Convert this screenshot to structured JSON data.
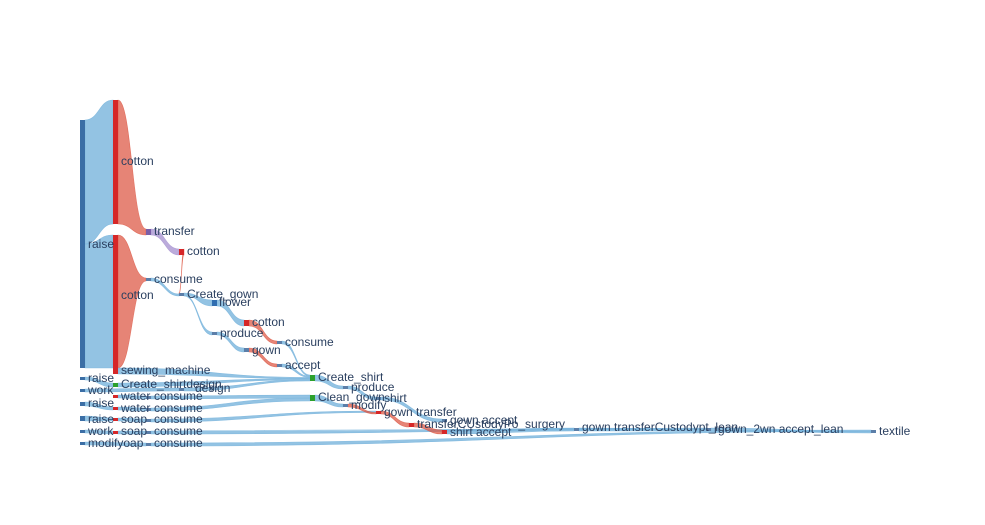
{
  "chart_data": {
    "type": "sankey",
    "nodes": [
      {
        "id": "raise_main",
        "label": "raise",
        "color": "#3b6ea5"
      },
      {
        "id": "cotton_1",
        "label": "cotton",
        "color": "#d62728"
      },
      {
        "id": "transfer_1",
        "label": "transfer",
        "color": "#7a5ea8"
      },
      {
        "id": "cotton_2",
        "label": "cotton",
        "color": "#d62728"
      },
      {
        "id": "cotton_3",
        "label": "cotton",
        "color": "#d62728"
      },
      {
        "id": "consume_1",
        "label": "consume",
        "color": "#5b7ea8"
      },
      {
        "id": "create_gown",
        "label": "Create_gown",
        "color": "#5b7ea8"
      },
      {
        "id": "flower",
        "label": "flower",
        "color": "#2f6db0"
      },
      {
        "id": "cotton_4",
        "label": "cotton",
        "color": "#d62728"
      },
      {
        "id": "produce_1",
        "label": "produce",
        "color": "#5b7ea8"
      },
      {
        "id": "consume_2",
        "label": "consume",
        "color": "#5b7ea8"
      },
      {
        "id": "gown_1",
        "label": "gown",
        "color": "#5b7ea8"
      },
      {
        "id": "accept_1",
        "label": "accept",
        "color": "#5b7ea8"
      },
      {
        "id": "sewing_machine",
        "label": "sewing_machine",
        "color": "#d62728"
      },
      {
        "id": "raise_2",
        "label": "raise",
        "color": "#3b6ea5"
      },
      {
        "id": "create_shirt_design",
        "label": "Create_shirtdesign",
        "color": "#2ca02c"
      },
      {
        "id": "work_1",
        "label": "work",
        "color": "#3b6ea5"
      },
      {
        "id": "design_1",
        "label": "design",
        "color": "#5b7ea8"
      },
      {
        "id": "water_1",
        "label": "water",
        "color": "#d62728"
      },
      {
        "id": "consume_3",
        "label": "consume",
        "color": "#5b7ea8"
      },
      {
        "id": "raise_3",
        "label": "raise",
        "color": "#3b6ea5"
      },
      {
        "id": "water_2",
        "label": "water",
        "color": "#d62728"
      },
      {
        "id": "consume_4",
        "label": "consume",
        "color": "#5b7ea8"
      },
      {
        "id": "raise_4",
        "label": "raise",
        "color": "#3b6ea5"
      },
      {
        "id": "soap_1",
        "label": "soap",
        "color": "#d62728"
      },
      {
        "id": "consume_5",
        "label": "consume",
        "color": "#5b7ea8"
      },
      {
        "id": "work_2",
        "label": "work",
        "color": "#3b6ea5"
      },
      {
        "id": "soap_2",
        "label": "soap",
        "color": "#d62728"
      },
      {
        "id": "consume_6",
        "label": "consume",
        "color": "#5b7ea8"
      },
      {
        "id": "modify_1",
        "label": "modifyoap",
        "color": "#3b6ea5"
      },
      {
        "id": "consume_7",
        "label": "consume",
        "color": "#5b7ea8"
      },
      {
        "id": "create_shirt",
        "label": "Create_shirt",
        "color": "#2ca02c"
      },
      {
        "id": "produce_2",
        "label": "produce",
        "color": "#5b7ea8"
      },
      {
        "id": "clean_gown",
        "label": "Clean_gown",
        "color": "#2ca02c"
      },
      {
        "id": "shirt_1",
        "label": "shirt",
        "color": "#5b7ea8"
      },
      {
        "id": "modify_2",
        "label": "modify",
        "color": "#5b7ea8"
      },
      {
        "id": "gown_transfer",
        "label": "gown transfer",
        "color": "#d62728"
      },
      {
        "id": "gown_accept",
        "label": "gown accept",
        "color": "#5b7ea8"
      },
      {
        "id": "transfer_custody",
        "label": "transferCUstodyPo_surgery",
        "color": "#d62728"
      },
      {
        "id": "shirt_accept",
        "label": "shirt accept",
        "color": "#d62728"
      },
      {
        "id": "gown_transfer_2",
        "label": "gown transferCustodypt_lean",
        "color": "#5b7ea8"
      },
      {
        "id": "gown_2",
        "label": "rgown_2wn accept_lean",
        "color": "#5b7ea8"
      },
      {
        "id": "textile",
        "label": "textile",
        "color": "#5b7ea8"
      }
    ],
    "links": [
      {
        "source": "raise_main",
        "target": "cotton_1",
        "value": 50,
        "color": "rgba(120,180,220,0.8)"
      },
      {
        "source": "raise_main",
        "target": "cotton_3",
        "value": 50,
        "color": "rgba(120,180,220,0.8)"
      },
      {
        "source": "cotton_1",
        "target": "transfer_1",
        "value": 1,
        "color": "rgba(220,80,60,0.7)"
      },
      {
        "source": "transfer_1",
        "target": "cotton_2",
        "value": 2,
        "color": "rgba(170,150,210,0.8)"
      },
      {
        "source": "cotton_2",
        "target": "create_gown",
        "value": 0.5,
        "color": "rgba(220,80,60,0.7)"
      },
      {
        "source": "cotton_3",
        "target": "consume_1",
        "value": 1,
        "color": "rgba(220,80,60,0.7)"
      },
      {
        "source": "consume_1",
        "target": "create_gown",
        "value": 1,
        "color": "rgba(120,180,220,0.8)"
      },
      {
        "source": "create_gown",
        "target": "flower",
        "value": 1,
        "color": "rgba(120,180,220,0.8)"
      },
      {
        "source": "flower",
        "target": "cotton_4",
        "value": 2,
        "color": "rgba(120,180,220,0.8)"
      },
      {
        "source": "create_gown",
        "target": "produce_1",
        "value": 0.5,
        "color": "rgba(120,180,220,0.8)"
      },
      {
        "source": "produce_1",
        "target": "gown_1",
        "value": 0.5,
        "color": "rgba(120,180,220,0.8)"
      },
      {
        "source": "cotton_4",
        "target": "consume_2",
        "value": 0.5,
        "color": "rgba(220,80,60,0.7)"
      },
      {
        "source": "gown_1",
        "target": "accept_1",
        "value": 0.5,
        "color": "rgba(220,80,60,0.7)"
      },
      {
        "source": "consume_2",
        "target": "create_shirt",
        "value": 0.5,
        "color": "rgba(120,180,220,0.8)"
      },
      {
        "source": "accept_1",
        "target": "create_shirt",
        "value": 0.5,
        "color": "rgba(120,180,220,0.8)"
      },
      {
        "source": "sewing_machine",
        "target": "create_shirt",
        "value": 0.5,
        "color": "rgba(120,180,220,0.8)"
      },
      {
        "source": "raise_2",
        "target": "create_shirt_design",
        "value": 0.5,
        "color": "rgba(120,180,220,0.8)"
      },
      {
        "source": "create_shirt_design",
        "target": "create_shirt",
        "value": 0.5,
        "color": "rgba(120,180,220,0.8)"
      },
      {
        "source": "work_1",
        "target": "design_1",
        "value": 0.5,
        "color": "rgba(120,180,220,0.8)"
      },
      {
        "source": "design_1",
        "target": "create_shirt",
        "value": 0.5,
        "color": "rgba(120,180,220,0.8)"
      },
      {
        "source": "water_1",
        "target": "consume_3",
        "value": 0.5,
        "color": "rgba(120,180,220,0.8)"
      },
      {
        "source": "consume_3",
        "target": "clean_gown",
        "value": 0.5,
        "color": "rgba(120,180,220,0.8)"
      },
      {
        "source": "raise_3",
        "target": "water_2",
        "value": 0.5,
        "color": "rgba(120,180,220,0.8)"
      },
      {
        "source": "water_2",
        "target": "consume_4",
        "value": 0.5,
        "color": "rgba(120,180,220,0.8)"
      },
      {
        "source": "consume_4",
        "target": "clean_gown",
        "value": 0.5,
        "color": "rgba(120,180,220,0.8)"
      },
      {
        "source": "raise_4",
        "target": "soap_1",
        "value": 0.5,
        "color": "rgba(120,180,220,0.8)"
      },
      {
        "source": "soap_1",
        "target": "consume_5",
        "value": 0.5,
        "color": "rgba(120,180,220,0.8)"
      },
      {
        "source": "consume_5",
        "target": "gown_transfer",
        "value": 0.5,
        "color": "rgba(120,180,220,0.8)"
      },
      {
        "source": "work_2",
        "target": "soap_2",
        "value": 0.5,
        "color": "rgba(120,180,220,0.8)"
      },
      {
        "source": "soap_2",
        "target": "consume_6",
        "value": 0.5,
        "color": "rgba(120,180,220,0.8)"
      },
      {
        "source": "consume_6",
        "target": "gown_2",
        "value": 0.5,
        "color": "rgba(120,180,220,0.8)"
      },
      {
        "source": "modify_1",
        "target": "consume_7",
        "value": 0.5,
        "color": "rgba(120,180,220,0.8)"
      },
      {
        "source": "consume_7",
        "target": "textile",
        "value": 0.5,
        "color": "rgba(120,180,220,0.8)"
      },
      {
        "source": "create_shirt",
        "target": "produce_2",
        "value": 0.5,
        "color": "rgba(120,180,220,0.8)"
      },
      {
        "source": "clean_gown",
        "target": "modify_2",
        "value": 0.5,
        "color": "rgba(120,180,220,0.8)"
      },
      {
        "source": "produce_2",
        "target": "shirt_1",
        "value": 0.5,
        "color": "rgba(120,180,220,0.8)"
      },
      {
        "source": "modify_2",
        "target": "gown_transfer",
        "value": 0.5,
        "color": "rgba(220,80,60,0.7)"
      },
      {
        "source": "gown_transfer",
        "target": "transfer_custody",
        "value": 0.5,
        "color": "rgba(220,80,60,0.7)"
      },
      {
        "source": "shirt_1",
        "target": "gown_accept",
        "value": 0.5,
        "color": "rgba(120,180,220,0.8)"
      },
      {
        "source": "transfer_custody",
        "target": "shirt_accept",
        "value": 0.5,
        "color": "rgba(220,80,60,0.7)"
      },
      {
        "source": "shirt_accept",
        "target": "gown_transfer_2",
        "value": 0.5,
        "color": "rgba(120,180,220,0.8)"
      },
      {
        "source": "gown_transfer_2",
        "target": "gown_2",
        "value": 0.5,
        "color": "rgba(120,180,220,0.8)"
      },
      {
        "source": "gown_2",
        "target": "textile",
        "value": 0.5,
        "color": "rgba(120,180,220,0.8)"
      }
    ]
  }
}
